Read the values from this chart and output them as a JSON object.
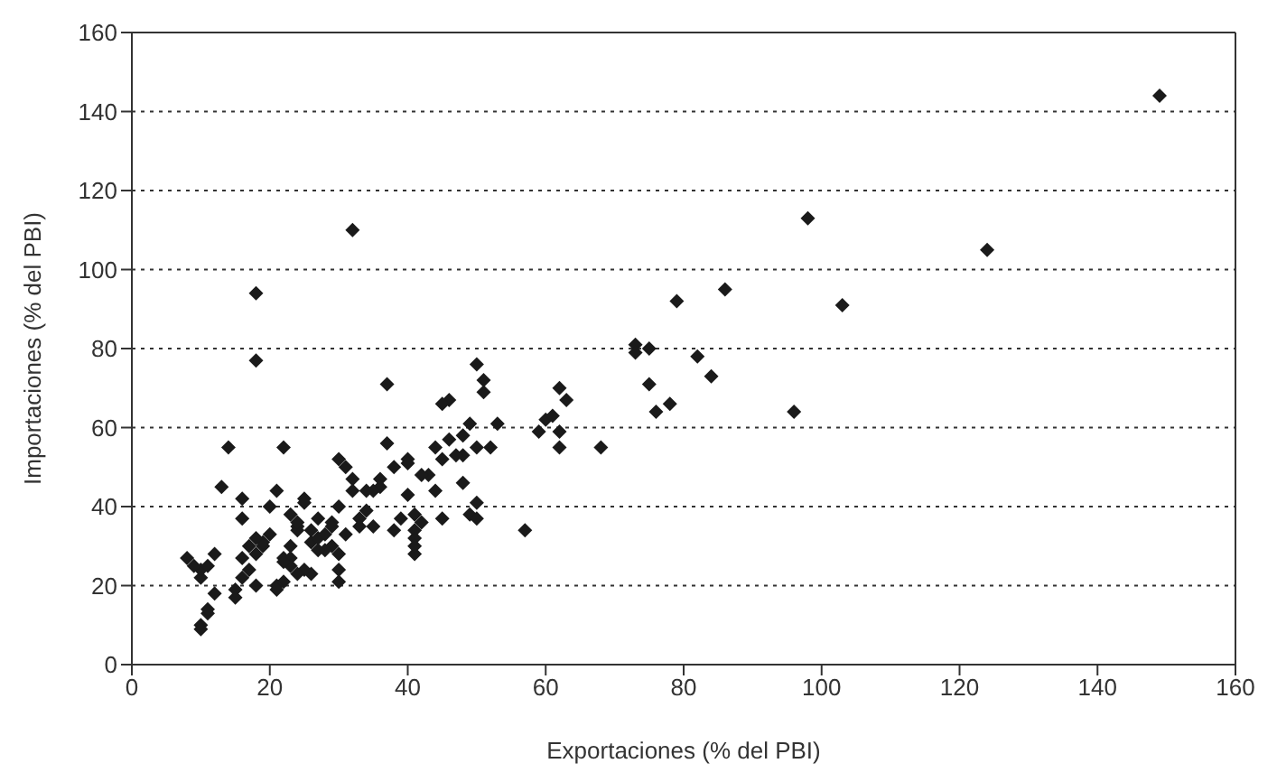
{
  "chart_data": {
    "type": "scatter",
    "xlabel": "Exportaciones (% del PBI)",
    "ylabel": "Importaciones (% del PBI)",
    "xlim": [
      0,
      160
    ],
    "xticks": [
      0,
      20,
      40,
      60,
      80,
      100,
      120,
      140,
      160
    ],
    "ylim": [
      0,
      160
    ],
    "yticks": [
      0,
      20,
      40,
      60,
      80,
      100,
      120,
      140,
      160
    ],
    "grid": "y",
    "line_style": "dotted",
    "marker": "diamond",
    "series": [
      {
        "color": "#1a1a1a",
        "x": [
          149,
          98,
          124,
          103,
          96,
          32,
          18,
          18,
          86,
          79,
          82,
          84,
          73,
          73,
          75,
          75,
          76,
          78,
          68,
          57,
          62,
          60,
          61,
          62,
          62,
          63,
          59,
          53,
          52,
          51,
          51,
          50,
          49,
          50,
          48,
          48,
          48,
          50,
          49,
          50,
          46,
          45,
          47,
          46,
          45,
          44,
          44,
          43,
          42,
          40,
          40,
          40,
          41,
          41,
          41,
          41,
          38,
          38,
          37,
          37,
          36,
          36,
          35,
          34,
          34,
          35,
          33,
          33,
          32,
          32,
          31,
          30,
          30,
          31,
          30,
          30,
          30,
          29,
          29,
          29,
          28,
          27,
          27,
          26,
          26,
          25,
          25,
          24,
          24,
          24,
          23,
          23,
          23,
          23,
          22,
          22,
          22,
          21,
          21,
          22,
          21,
          20,
          20,
          19,
          19,
          18,
          17,
          18,
          17,
          18,
          16,
          16,
          16,
          16,
          15,
          15,
          14,
          13,
          12,
          12,
          11,
          11,
          10,
          10,
          10,
          10,
          11,
          9,
          8,
          26,
          25,
          24,
          27,
          28,
          45,
          41,
          39,
          42
        ],
        "values": [
          144,
          113,
          105,
          91,
          64,
          110,
          94,
          77,
          95,
          92,
          78,
          73,
          81,
          79,
          80,
          71,
          64,
          66,
          55,
          34,
          70,
          62,
          63,
          59,
          55,
          67,
          59,
          61,
          55,
          72,
          69,
          76,
          61,
          55,
          53,
          58,
          46,
          41,
          38,
          37,
          67,
          66,
          53,
          57,
          52,
          55,
          44,
          48,
          48,
          52,
          51,
          43,
          34,
          32,
          28,
          30,
          50,
          34,
          71,
          56,
          47,
          45,
          44,
          44,
          39,
          35,
          37,
          35,
          47,
          44,
          50,
          52,
          40,
          33,
          28,
          24,
          21,
          36,
          35,
          30,
          29,
          29,
          37,
          34,
          31,
          42,
          41,
          35,
          34,
          36,
          38,
          30,
          27,
          25,
          27,
          26,
          21,
          20,
          19,
          55,
          44,
          40,
          33,
          30,
          31,
          32,
          30,
          28,
          24,
          20,
          37,
          42,
          27,
          22,
          19,
          17,
          55,
          45,
          28,
          18,
          13,
          14,
          10,
          9,
          22,
          24,
          25,
          25,
          27,
          23,
          24,
          23,
          32,
          33,
          37,
          38,
          37,
          36
        ]
      }
    ]
  }
}
